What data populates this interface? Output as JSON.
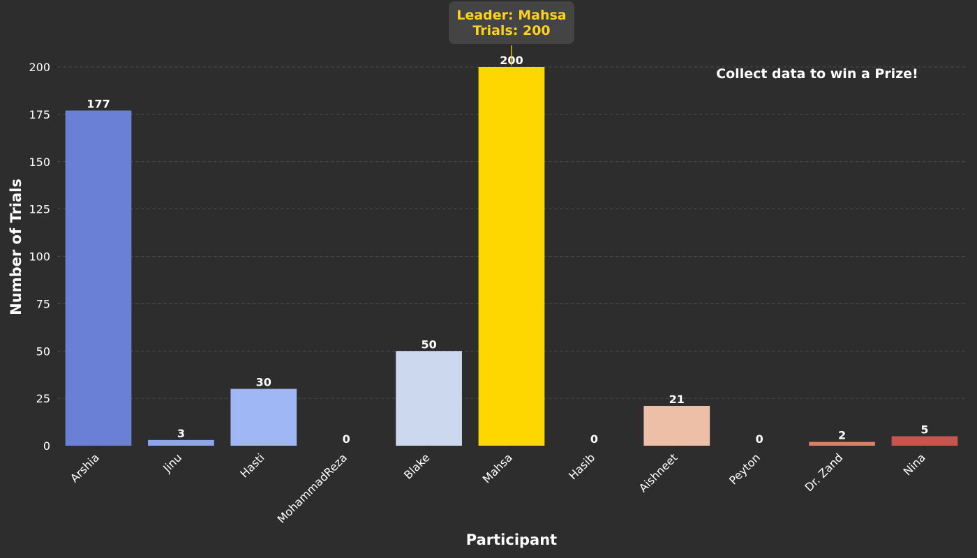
{
  "chart_data": {
    "type": "bar",
    "categories": [
      "Arshia",
      "Jinu",
      "Hasti",
      "MohammadReza",
      "Blake",
      "Mahsa",
      "Hasib",
      "Aishneet",
      "Peyton",
      "Dr. Zand",
      "Nina"
    ],
    "values": [
      177,
      3,
      30,
      0,
      50,
      200,
      0,
      21,
      0,
      2,
      5
    ],
    "colors": [
      "#6a7fd6",
      "#8da4ee",
      "#a0b7f5",
      "#bccdf3",
      "#ccd8ee",
      "#ffd700",
      "#e6d7cc",
      "#edbfa6",
      "#e6a286",
      "#da8268",
      "#c9534f"
    ],
    "highlight_color": "#ffd700",
    "title": "",
    "xlabel": "Participant",
    "ylabel": "Number of Trials",
    "ylim": [
      0,
      200
    ],
    "yticks": [
      0,
      25,
      50,
      75,
      100,
      125,
      150,
      175,
      200
    ],
    "grid": "horizontal dashed",
    "annotation": {
      "line1": "Leader: Mahsa",
      "line2": "Trials: 200",
      "target": "Mahsa",
      "color": "#ffd21f"
    },
    "note": "Collect data to win a Prize!"
  }
}
